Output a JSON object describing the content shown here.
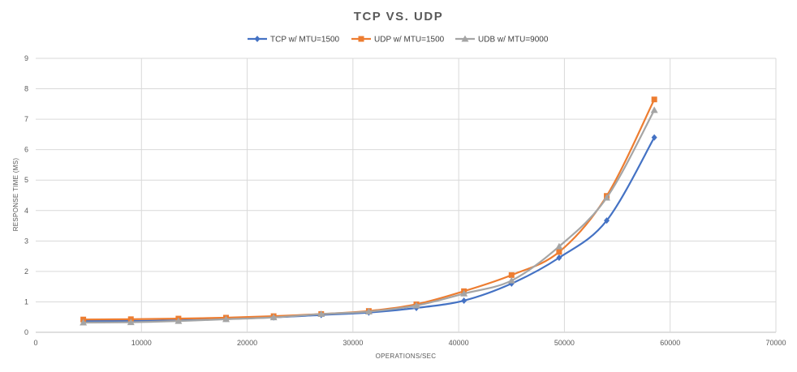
{
  "chart_data": {
    "type": "line",
    "title": "TCP VS. UDP",
    "xlabel": "OPERATIONS/SEC",
    "ylabel": "RESPONSE TIME (MS)",
    "xlim": [
      0,
      70000
    ],
    "ylim": [
      0,
      9
    ],
    "x_ticks": [
      0,
      10000,
      20000,
      30000,
      40000,
      50000,
      60000,
      70000
    ],
    "y_ticks": [
      0,
      1,
      2,
      3,
      4,
      5,
      6,
      7,
      8,
      9
    ],
    "grid": true,
    "legend_position": "top",
    "series": [
      {
        "name": "TCP w/ MTU=1500",
        "color": "#4472c4",
        "marker": "diamond",
        "x": [
          4500,
          9000,
          13500,
          18000,
          22500,
          27000,
          31500,
          36000,
          40500,
          45000,
          49500,
          54000,
          58500
        ],
        "y": [
          0.37,
          0.37,
          0.39,
          0.44,
          0.49,
          0.57,
          0.65,
          0.8,
          1.04,
          1.6,
          2.45,
          3.67,
          6.4
        ]
      },
      {
        "name": "UDP w/ MTU=1500",
        "color": "#ed7d31",
        "marker": "square",
        "x": [
          4500,
          9000,
          13500,
          18000,
          22500,
          27000,
          31500,
          36000,
          40500,
          45000,
          49500,
          54000,
          58500
        ],
        "y": [
          0.42,
          0.43,
          0.45,
          0.48,
          0.53,
          0.6,
          0.7,
          0.92,
          1.35,
          1.88,
          2.64,
          4.48,
          7.65
        ]
      },
      {
        "name": "UDB w/ MTU=9000",
        "color": "#a5a5a5",
        "marker": "triangle",
        "x": [
          4500,
          9000,
          13500,
          18000,
          22500,
          27000,
          31500,
          36000,
          40500,
          45000,
          49500,
          54000,
          58500
        ],
        "y": [
          0.32,
          0.33,
          0.37,
          0.43,
          0.49,
          0.6,
          0.68,
          0.88,
          1.27,
          1.7,
          2.82,
          4.42,
          7.3
        ]
      }
    ]
  }
}
